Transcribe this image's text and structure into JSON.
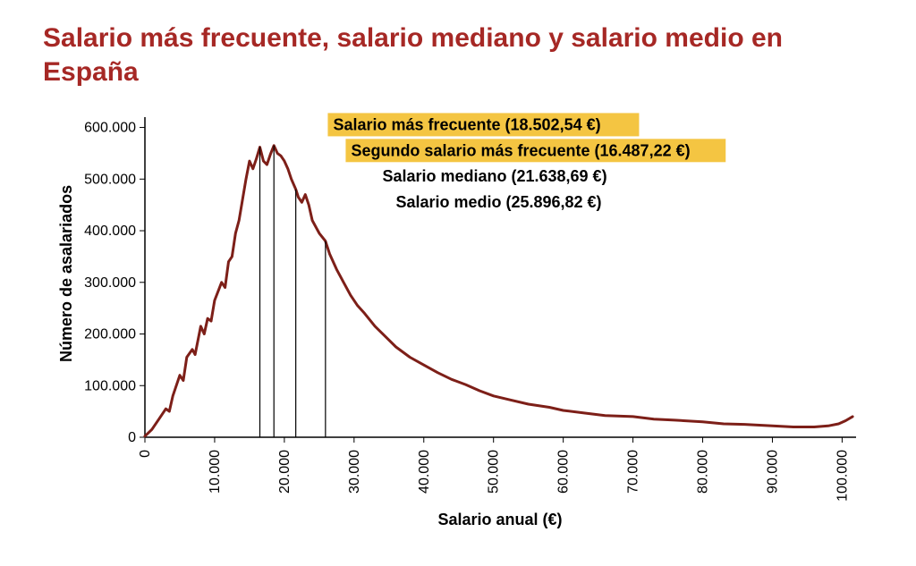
{
  "title": "Salario más frecuente, salario mediano y salario medio en España",
  "chart": {
    "type": "line",
    "background_color": "#ffffff",
    "line_color": "#7d1f18",
    "line_width": 3,
    "axis_color": "#000000",
    "axis_width": 1.5,
    "tick_length": 6,
    "xlabel": "Salario anual (€)",
    "ylabel": "Número de asalariados",
    "label_fontsize": 18,
    "xlim": [
      0,
      102000
    ],
    "ylim": [
      0,
      620000
    ],
    "x_ticks": [
      0,
      10000,
      20000,
      30000,
      40000,
      50000,
      60000,
      70000,
      80000,
      90000,
      100000
    ],
    "x_tick_labels": [
      "0",
      "10.000",
      "20.000",
      "30.000",
      "40.000",
      "50.000",
      "60.000",
      "70.000",
      "80.000",
      "90.000",
      "100.000"
    ],
    "y_ticks": [
      0,
      100000,
      200000,
      300000,
      400000,
      500000,
      600000
    ],
    "y_tick_labels": [
      "0",
      "100.000",
      "200.000",
      "300.000",
      "400.000",
      "500.000",
      "600.000"
    ],
    "annotations": [
      {
        "label": "Salario más frecuente (18.502,54 €)",
        "x": 18502.54,
        "highlight": true
      },
      {
        "label": "Segundo salario más frecuente (16.487,22 €)",
        "x": 16487.22,
        "highlight": true
      },
      {
        "label": "Salario mediano (21.638,69 €)",
        "x": 21638.69,
        "highlight": false
      },
      {
        "label": "Salario medio (25.896,82 €)",
        "x": 25896.82,
        "highlight": false
      }
    ],
    "highlight_color": "#f4c542",
    "annotation_fontsize": 18,
    "vline_color": "#000000",
    "vline_width": 1.2,
    "series": [
      [
        0,
        2000
      ],
      [
        1000,
        15000
      ],
      [
        2000,
        35000
      ],
      [
        3000,
        55000
      ],
      [
        3500,
        50000
      ],
      [
        4000,
        80000
      ],
      [
        5000,
        120000
      ],
      [
        5500,
        110000
      ],
      [
        6000,
        155000
      ],
      [
        6800,
        170000
      ],
      [
        7200,
        160000
      ],
      [
        8000,
        215000
      ],
      [
        8500,
        200000
      ],
      [
        9000,
        230000
      ],
      [
        9500,
        225000
      ],
      [
        10000,
        265000
      ],
      [
        11000,
        300000
      ],
      [
        11500,
        290000
      ],
      [
        12000,
        340000
      ],
      [
        12500,
        350000
      ],
      [
        13000,
        395000
      ],
      [
        13500,
        420000
      ],
      [
        14000,
        460000
      ],
      [
        14500,
        500000
      ],
      [
        15000,
        535000
      ],
      [
        15500,
        520000
      ],
      [
        16000,
        540000
      ],
      [
        16487,
        562000
      ],
      [
        17000,
        535000
      ],
      [
        17500,
        528000
      ],
      [
        18000,
        548000
      ],
      [
        18503,
        565000
      ],
      [
        19000,
        550000
      ],
      [
        19500,
        545000
      ],
      [
        20000,
        535000
      ],
      [
        20500,
        520000
      ],
      [
        21000,
        500000
      ],
      [
        21639,
        480000
      ],
      [
        22000,
        465000
      ],
      [
        22500,
        455000
      ],
      [
        23000,
        470000
      ],
      [
        23500,
        450000
      ],
      [
        24000,
        420000
      ],
      [
        25000,
        395000
      ],
      [
        25897,
        380000
      ],
      [
        26500,
        355000
      ],
      [
        27500,
        325000
      ],
      [
        28500,
        300000
      ],
      [
        29500,
        275000
      ],
      [
        30500,
        255000
      ],
      [
        31500,
        240000
      ],
      [
        33000,
        215000
      ],
      [
        34500,
        195000
      ],
      [
        36000,
        175000
      ],
      [
        38000,
        155000
      ],
      [
        40000,
        140000
      ],
      [
        42000,
        125000
      ],
      [
        44000,
        112000
      ],
      [
        46000,
        102000
      ],
      [
        48000,
        90000
      ],
      [
        50000,
        80000
      ],
      [
        52500,
        72000
      ],
      [
        55000,
        64000
      ],
      [
        58000,
        58000
      ],
      [
        60000,
        52000
      ],
      [
        63000,
        47000
      ],
      [
        66000,
        42000
      ],
      [
        70000,
        40000
      ],
      [
        73000,
        35000
      ],
      [
        76000,
        33000
      ],
      [
        80000,
        30000
      ],
      [
        83000,
        26000
      ],
      [
        86000,
        25000
      ],
      [
        90000,
        22000
      ],
      [
        93000,
        20000
      ],
      [
        96000,
        20000
      ],
      [
        98000,
        22000
      ],
      [
        99500,
        26000
      ],
      [
        100500,
        32000
      ],
      [
        101500,
        40000
      ]
    ]
  }
}
